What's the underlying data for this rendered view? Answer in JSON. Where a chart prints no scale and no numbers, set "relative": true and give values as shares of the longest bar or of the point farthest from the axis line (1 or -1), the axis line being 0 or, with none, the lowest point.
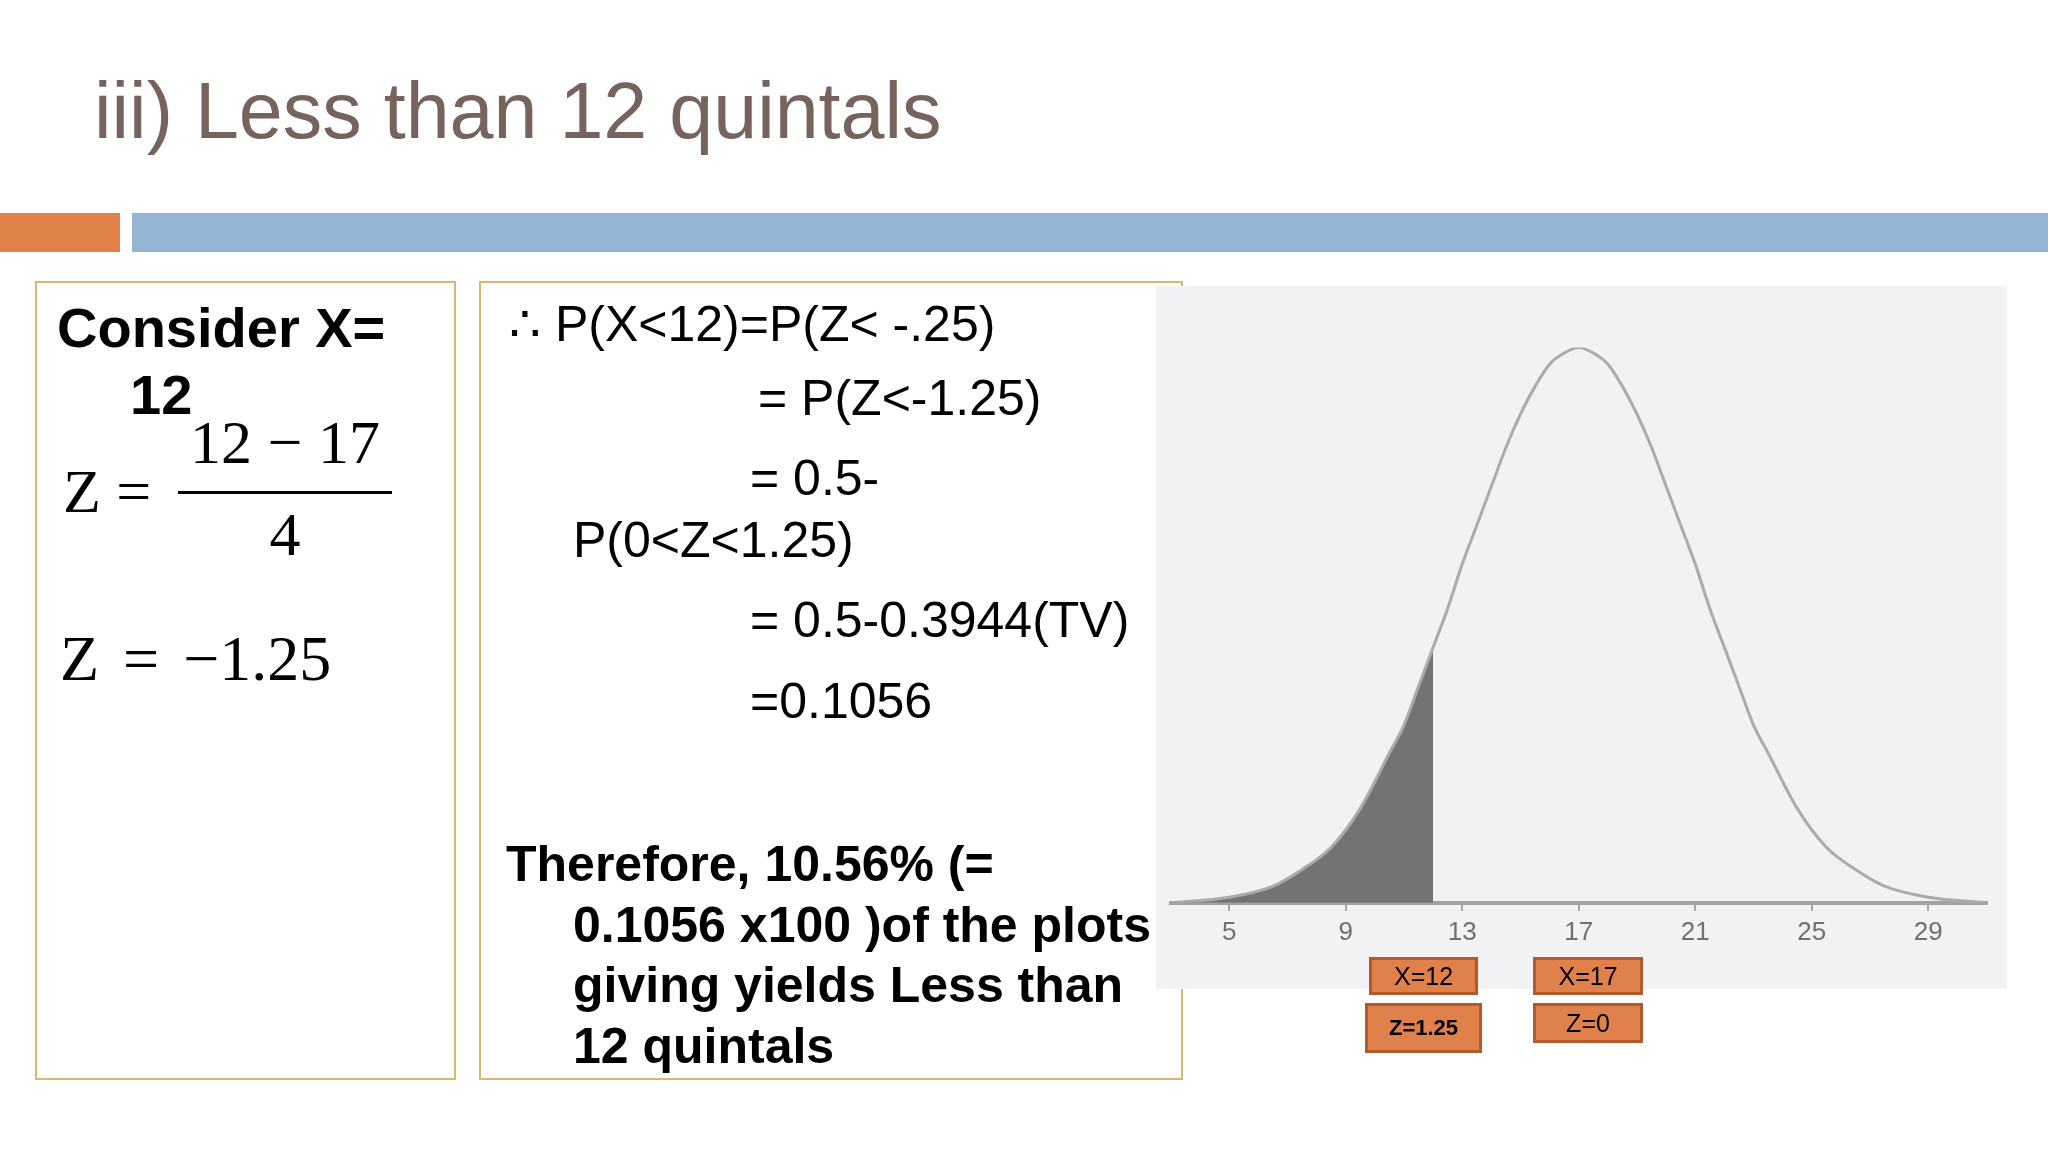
{
  "chart_data": {
    "type": "line",
    "title": "iii) Less than 12 quintals",
    "relative": true,
    "marker": "none",
    "xlim": [
      3,
      31
    ],
    "xticks": [
      5,
      9,
      13,
      17,
      21,
      25,
      29
    ],
    "series": [
      {
        "type": "line",
        "color": "#ababab",
        "x": [
          3,
          5,
          6.5,
          7.5,
          8.5,
          9.5,
          10.5,
          11,
          11.5,
          12,
          12.5,
          13,
          13.5,
          14,
          14.5,
          15,
          15.5,
          16,
          16.5,
          17,
          17.5,
          18,
          18.5,
          19,
          19.5,
          20,
          20.5,
          21,
          21.5,
          22,
          22.5,
          23,
          23.5,
          24.5,
          25.5,
          26.5,
          27.5,
          29,
          31
        ],
        "values": [
          0,
          0.01,
          0.03,
          0.06,
          0.1,
          0.17,
          0.27,
          0.32,
          0.39,
          0.46,
          0.53,
          0.61,
          0.68,
          0.75,
          0.82,
          0.88,
          0.93,
          0.97,
          0.99,
          1,
          0.99,
          0.97,
          0.93,
          0.88,
          0.82,
          0.75,
          0.68,
          0.61,
          0.53,
          0.46,
          0.39,
          0.32,
          0.27,
          0.17,
          0.1,
          0.06,
          0.03,
          0.01,
          0
        ]
      },
      {
        "type": "area",
        "color": "#737373",
        "x": [
          3,
          5,
          6.5,
          7.5,
          8.5,
          9.5,
          10.5,
          11,
          11.5,
          12
        ],
        "values": [
          0,
          0.01,
          0.03,
          0.06,
          0.1,
          0.17,
          0.27,
          0.32,
          0.39,
          0.46
        ]
      }
    ],
    "annotations": [
      "Consider X= 12",
      "Z =",
      "12 − 17",
      "4",
      "Z = −1.25",
      "∴ P(X<12)=P(Z< -.25)",
      "= P(Z<-1.25)",
      "= 0.5-P(0<Z<1.25)",
      "= 0.5-0.3944(TV)",
      "=0.1056",
      "Therefore, 10.56% (= 0.1056 x100 )of the plots giving yields Less than 12 quintals",
      "X=12",
      "Z=1.25",
      "X=17",
      "Z=0"
    ]
  }
}
